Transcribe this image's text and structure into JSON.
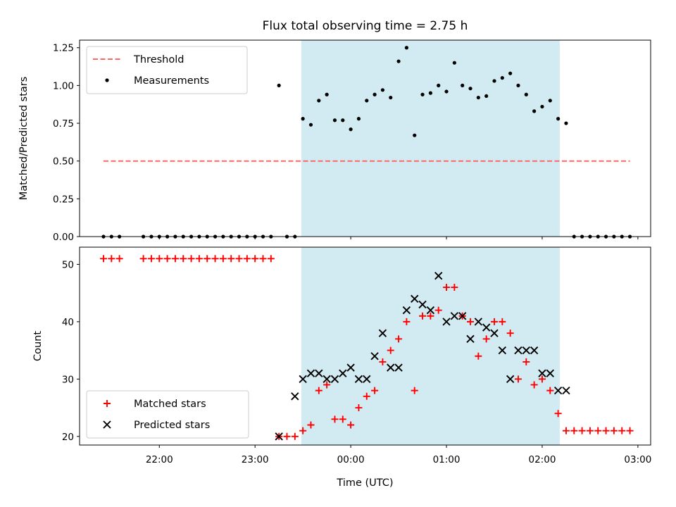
{
  "chart_data": [
    {
      "type": "scatter",
      "title": "Flux total observing time = 2.75 h",
      "ylabel": "Matched/Predicted stars",
      "ylim": [
        0,
        1.3
      ],
      "yticks": [
        0.0,
        0.25,
        0.5,
        0.75,
        1.0,
        1.25
      ],
      "ytick_labels": [
        "0.00",
        "0.25",
        "0.50",
        "0.75",
        "1.00",
        "1.25"
      ],
      "legend_position": "top-left",
      "shaded_interval": {
        "start": "23:29",
        "end": "02:11",
        "color": "#add8e6"
      },
      "series": [
        {
          "name": "Threshold",
          "style": "dashed-line",
          "color": "#ff6666",
          "x": [
            "21:25",
            "02:55"
          ],
          "values": [
            0.5,
            0.5
          ]
        },
        {
          "name": "Measurements",
          "style": "dot",
          "color": "#000000",
          "x": [
            "21:25",
            "21:30",
            "21:35",
            "21:50",
            "21:55",
            "22:00",
            "22:05",
            "22:10",
            "22:15",
            "22:20",
            "22:25",
            "22:30",
            "22:35",
            "22:40",
            "22:45",
            "22:50",
            "22:55",
            "23:00",
            "23:05",
            "23:10",
            "23:15",
            "23:20",
            "23:25",
            "23:30",
            "23:35",
            "23:40",
            "23:45",
            "23:50",
            "23:55",
            "00:00",
            "00:05",
            "00:10",
            "00:15",
            "00:20",
            "00:25",
            "00:30",
            "00:35",
            "00:40",
            "00:45",
            "00:50",
            "00:55",
            "01:00",
            "01:05",
            "01:10",
            "01:15",
            "01:20",
            "01:25",
            "01:30",
            "01:35",
            "01:40",
            "01:45",
            "01:50",
            "01:55",
            "02:00",
            "02:05",
            "02:10",
            "02:15",
            "02:20",
            "02:25",
            "02:30",
            "02:35",
            "02:40",
            "02:45",
            "02:50",
            "02:55"
          ],
          "values": [
            0,
            0,
            0,
            0,
            0,
            0,
            0,
            0,
            0,
            0,
            0,
            0,
            0,
            0,
            0,
            0,
            0,
            0,
            0,
            0,
            1.0,
            0,
            0,
            0.78,
            0.74,
            0.9,
            0.94,
            0.77,
            0.77,
            0.71,
            0.78,
            0.9,
            0.94,
            0.97,
            0.92,
            1.16,
            1.25,
            0.67,
            0.94,
            0.95,
            1.0,
            0.96,
            1.15,
            1.0,
            0.98,
            0.92,
            0.93,
            1.03,
            1.05,
            1.08,
            1.0,
            0.94,
            0.83,
            0.86,
            0.9,
            0.78,
            0.75,
            0,
            0,
            0,
            0,
            0,
            0,
            0,
            0
          ]
        }
      ]
    },
    {
      "type": "scatter",
      "xlabel": "Time (UTC)",
      "ylabel": "Count",
      "ylim": [
        18.5,
        53
      ],
      "yticks": [
        20,
        30,
        40,
        50
      ],
      "ytick_labels": [
        "20",
        "30",
        "40",
        "50"
      ],
      "xlim": [
        "21:10",
        "03:08"
      ],
      "xticks": [
        "22:00",
        "23:00",
        "00:00",
        "01:00",
        "02:00",
        "03:00"
      ],
      "legend_position": "bottom-left",
      "shaded_interval": {
        "start": "23:29",
        "end": "02:11",
        "color": "#add8e6"
      },
      "series": [
        {
          "name": "Matched stars",
          "style": "plus",
          "color": "#ff0000",
          "x": [
            "21:25",
            "21:30",
            "21:35",
            "21:50",
            "21:55",
            "22:00",
            "22:05",
            "22:10",
            "22:15",
            "22:20",
            "22:25",
            "22:30",
            "22:35",
            "22:40",
            "22:45",
            "22:50",
            "22:55",
            "23:00",
            "23:05",
            "23:10",
            "23:15",
            "23:20",
            "23:25",
            "23:30",
            "23:35",
            "23:40",
            "23:45",
            "23:50",
            "23:55",
            "00:00",
            "00:05",
            "00:10",
            "00:15",
            "00:20",
            "00:25",
            "00:30",
            "00:35",
            "00:40",
            "00:45",
            "00:50",
            "00:55",
            "01:00",
            "01:05",
            "01:10",
            "01:15",
            "01:20",
            "01:25",
            "01:30",
            "01:35",
            "01:40",
            "01:45",
            "01:50",
            "01:55",
            "02:00",
            "02:05",
            "02:10",
            "02:15",
            "02:20",
            "02:25",
            "02:30",
            "02:35",
            "02:40",
            "02:45",
            "02:50",
            "02:55"
          ],
          "values": [
            51,
            51,
            51,
            51,
            51,
            51,
            51,
            51,
            51,
            51,
            51,
            51,
            51,
            51,
            51,
            51,
            51,
            51,
            51,
            51,
            20,
            20,
            20,
            21,
            22,
            28,
            29,
            23,
            23,
            22,
            25,
            27,
            28,
            33,
            35,
            37,
            40,
            28,
            41,
            41,
            42,
            46,
            46,
            41,
            40,
            34,
            37,
            40,
            40,
            38,
            30,
            33,
            29,
            30,
            28,
            24,
            21,
            21,
            21,
            21,
            21,
            21,
            21,
            21,
            21
          ]
        },
        {
          "name": "Predicted stars",
          "style": "x",
          "color": "#000000",
          "x": [
            "23:15",
            "23:25",
            "23:30",
            "23:35",
            "23:40",
            "23:45",
            "23:50",
            "23:55",
            "00:00",
            "00:05",
            "00:10",
            "00:15",
            "00:20",
            "00:25",
            "00:30",
            "00:35",
            "00:40",
            "00:45",
            "00:50",
            "00:55",
            "01:00",
            "01:05",
            "01:10",
            "01:15",
            "01:20",
            "01:25",
            "01:30",
            "01:35",
            "01:40",
            "01:45",
            "01:50",
            "01:55",
            "02:00",
            "02:05",
            "02:10",
            "02:15"
          ],
          "values": [
            20,
            27,
            30,
            31,
            31,
            30,
            30,
            31,
            32,
            30,
            30,
            34,
            38,
            32,
            32,
            42,
            44,
            43,
            42,
            48,
            40,
            41,
            41,
            37,
            40,
            39,
            38,
            35,
            30,
            35,
            35,
            35,
            31,
            31,
            28,
            28
          ]
        }
      ]
    }
  ]
}
